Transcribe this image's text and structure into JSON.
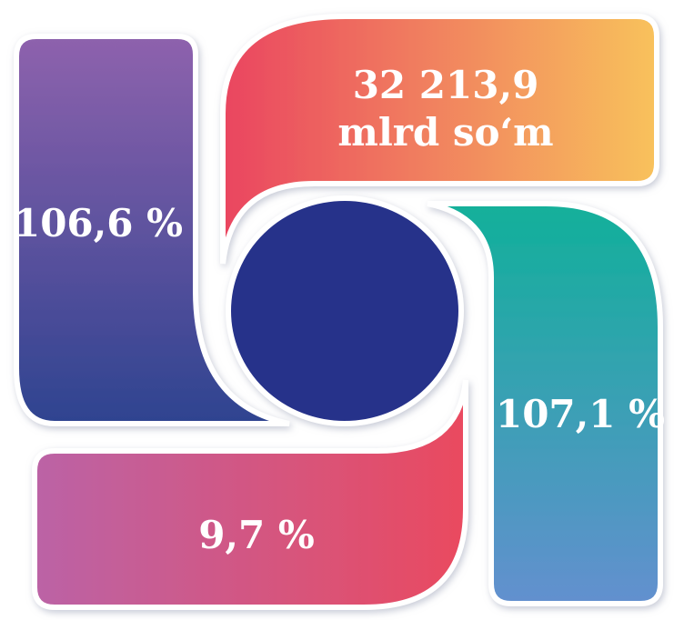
{
  "blades": {
    "top": {
      "lines": [
        "32 213,9",
        "mlrd so‘m"
      ]
    },
    "left": {
      "value": "106,6 %"
    },
    "right": {
      "value": "107,1 %"
    },
    "bottom": {
      "value": "9,7 %"
    }
  },
  "colors": {
    "center": "#28328a",
    "left_start": "#8e62ad",
    "left_end": "#2e4390",
    "top_start": "#ea4560",
    "top_end": "#f8c25c",
    "right_start": "#11b09a",
    "right_end": "#6390cf",
    "bottom_start": "#bb63a6",
    "bottom_end": "#ea4a5f",
    "outline": "#ffffff",
    "shadow": "#aeb3c4"
  }
}
